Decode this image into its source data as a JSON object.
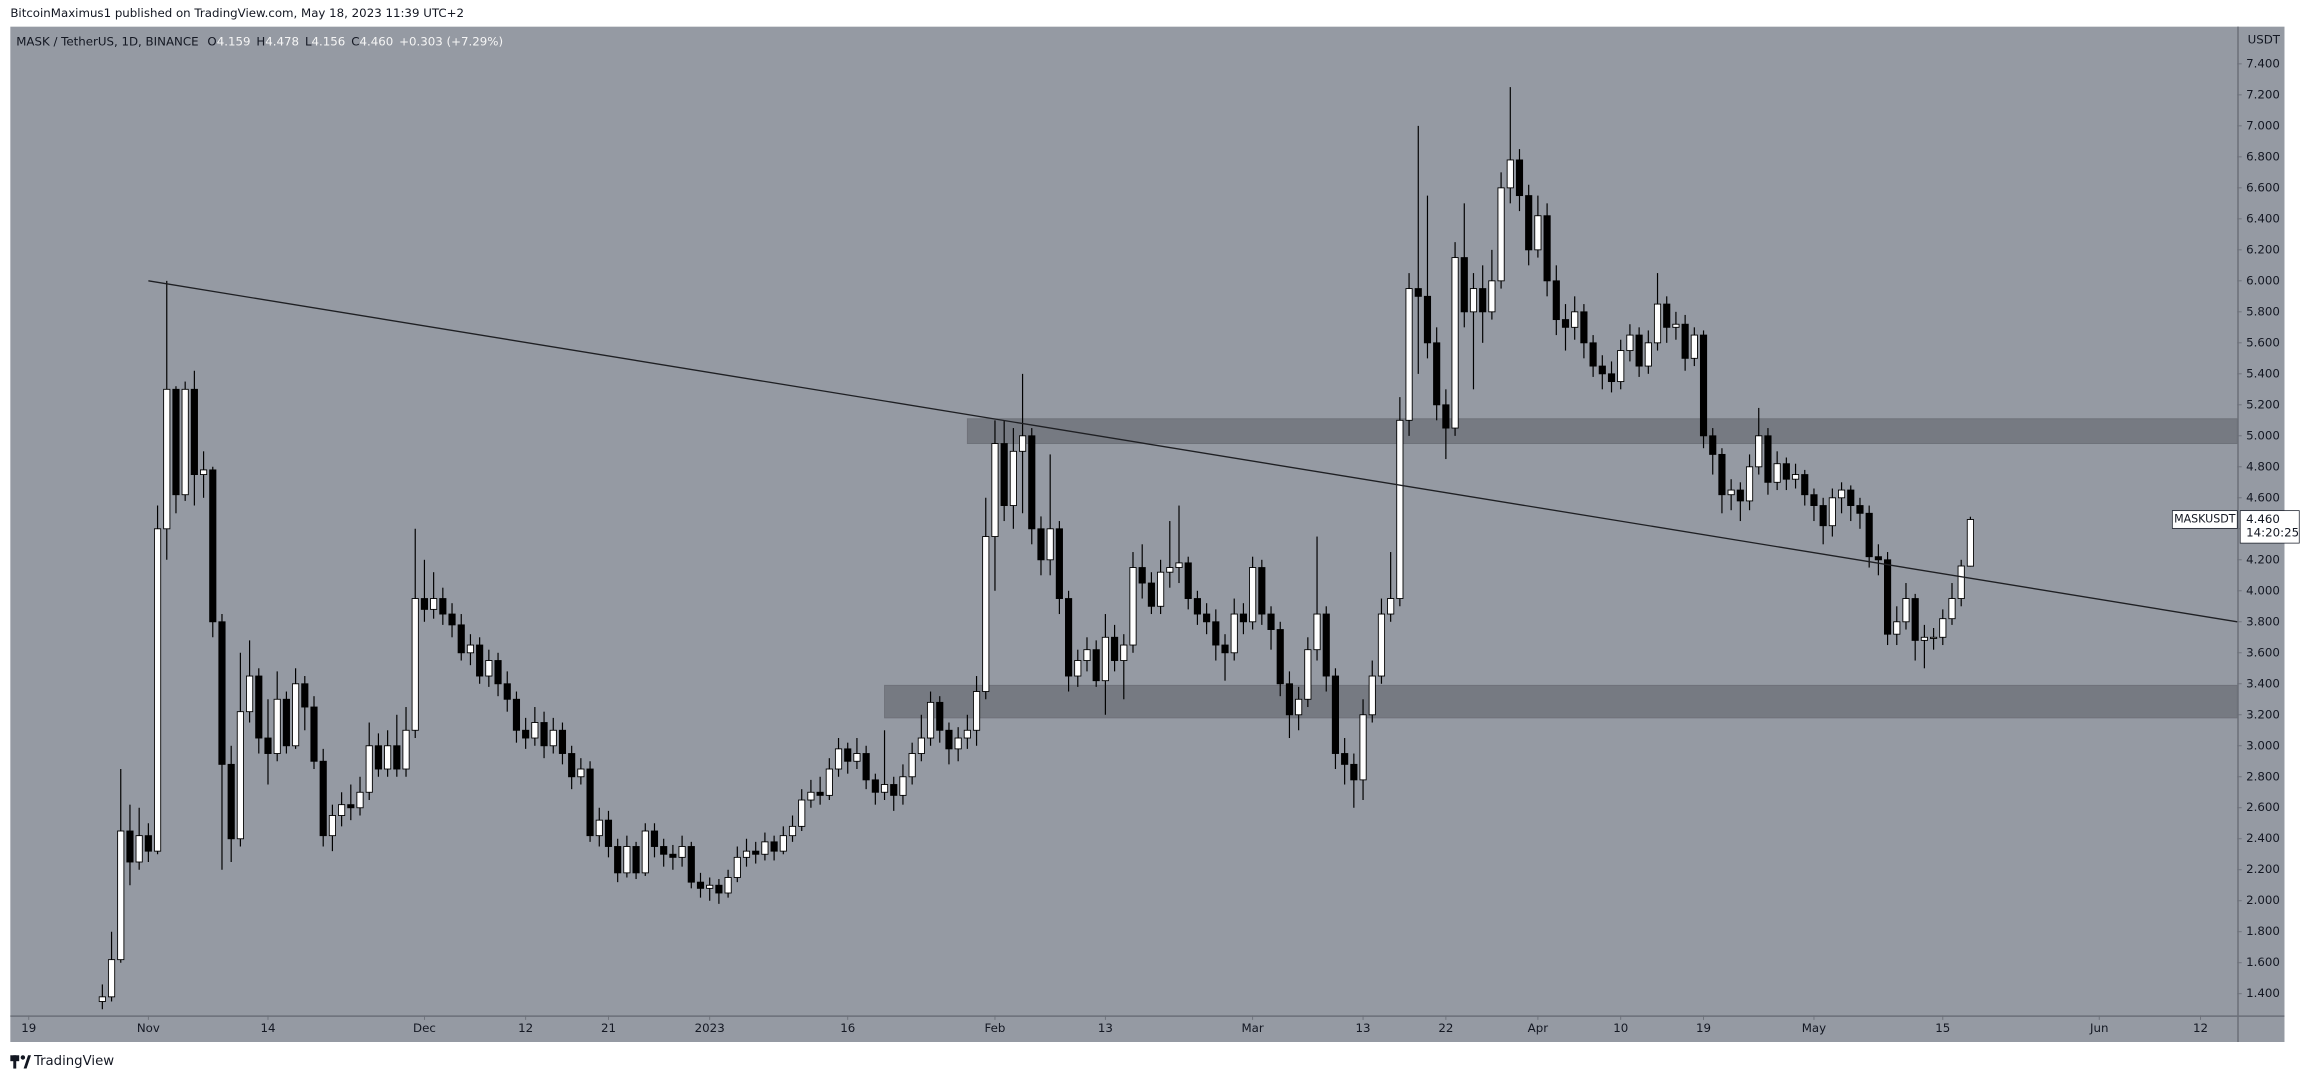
{
  "header": {
    "text": "BitcoinMaximus1 published on TradingView.com, May 18, 2023 11:39 UTC+2"
  },
  "footer": {
    "brand": "TradingView"
  },
  "chart_data": {
    "type": "candlestick",
    "legend": {
      "symbol": "MASK / TetherUS, 1D, BINANCE",
      "fields": [
        {
          "key": "O",
          "text": "4.159"
        },
        {
          "key": "H",
          "text": "4.478"
        },
        {
          "key": "L",
          "text": "4.156"
        },
        {
          "key": "C",
          "text": "4.460"
        }
      ],
      "change": "+0.303 (+7.29%)"
    },
    "y_unit": "USDT",
    "price_tag": {
      "symbol": "MASKUSDT",
      "price": "4.460",
      "countdown": "14:20:25"
    },
    "grid": false,
    "up_color": "#ffffff",
    "down_color": "#000000",
    "wick_color": "#000000",
    "xlim": [
      "2022-10-17",
      "2023-06-16"
    ],
    "ylim": [
      1.26,
      7.64
    ],
    "xticks": [
      {
        "value": "2022-10-19",
        "label": "19"
      },
      {
        "value": "2022-11-01",
        "label": "Nov"
      },
      {
        "value": "2022-11-14",
        "label": "14"
      },
      {
        "value": "2022-12-01",
        "label": "Dec"
      },
      {
        "value": "2022-12-12",
        "label": "12"
      },
      {
        "value": "2022-12-21",
        "label": "21"
      },
      {
        "value": "2023-01-01",
        "label": "2023"
      },
      {
        "value": "2023-01-16",
        "label": "16"
      },
      {
        "value": "2023-02-01",
        "label": "Feb"
      },
      {
        "value": "2023-02-13",
        "label": "13"
      },
      {
        "value": "2023-03-01",
        "label": "Mar"
      },
      {
        "value": "2023-03-13",
        "label": "13"
      },
      {
        "value": "2023-03-22",
        "label": "22"
      },
      {
        "value": "2023-04-01",
        "label": "Apr"
      },
      {
        "value": "2023-04-10",
        "label": "10"
      },
      {
        "value": "2023-04-19",
        "label": "19"
      },
      {
        "value": "2023-05-01",
        "label": "May"
      },
      {
        "value": "2023-05-15",
        "label": "15"
      },
      {
        "value": "2023-06-01",
        "label": "Jun"
      },
      {
        "value": "2023-06-12",
        "label": "12"
      }
    ],
    "yticks": [
      {
        "value": 1.4,
        "label": "1.400"
      },
      {
        "value": 1.6,
        "label": "1.600"
      },
      {
        "value": 1.8,
        "label": "1.800"
      },
      {
        "value": 2.0,
        "label": "2.000"
      },
      {
        "value": 2.2,
        "label": "2.200"
      },
      {
        "value": 2.4,
        "label": "2.400"
      },
      {
        "value": 2.6,
        "label": "2.600"
      },
      {
        "value": 2.8,
        "label": "2.800"
      },
      {
        "value": 3.0,
        "label": "3.000"
      },
      {
        "value": 3.2,
        "label": "3.200"
      },
      {
        "value": 3.4,
        "label": "3.400"
      },
      {
        "value": 3.6,
        "label": "3.600"
      },
      {
        "value": 3.8,
        "label": "3.800"
      },
      {
        "value": 4.0,
        "label": "4.000"
      },
      {
        "value": 4.2,
        "label": "4.200"
      },
      {
        "value": 4.4,
        "label": "4.400"
      },
      {
        "value": 4.6,
        "label": "4.600"
      },
      {
        "value": 4.8,
        "label": "4.800"
      },
      {
        "value": 5.0,
        "label": "5.000"
      },
      {
        "value": 5.2,
        "label": "5.200"
      },
      {
        "value": 5.4,
        "label": "5.400"
      },
      {
        "value": 5.6,
        "label": "5.600"
      },
      {
        "value": 5.8,
        "label": "5.800"
      },
      {
        "value": 6.0,
        "label": "6.000"
      },
      {
        "value": 6.2,
        "label": "6.200"
      },
      {
        "value": 6.4,
        "label": "6.400"
      },
      {
        "value": 6.6,
        "label": "6.600"
      },
      {
        "value": 6.8,
        "label": "6.800"
      },
      {
        "value": 7.0,
        "label": "7.000"
      },
      {
        "value": 7.2,
        "label": "7.200"
      },
      {
        "value": 7.4,
        "label": "7.400"
      }
    ],
    "trendline": {
      "x": [
        "2022-11-01",
        "2023-06-16"
      ],
      "y": [
        6.0,
        3.8
      ]
    },
    "zones": [
      {
        "x": [
          "2023-01-29",
          "2023-06-16"
        ],
        "y": [
          4.95,
          5.11
        ]
      },
      {
        "x": [
          "2023-01-20",
          "2023-06-16"
        ],
        "y": [
          3.18,
          3.39
        ]
      }
    ],
    "x": [
      "2022-10-27",
      "2022-10-28",
      "2022-10-29",
      "2022-10-30",
      "2022-10-31",
      "2022-11-01",
      "2022-11-02",
      "2022-11-03",
      "2022-11-04",
      "2022-11-05",
      "2022-11-06",
      "2022-11-07",
      "2022-11-08",
      "2022-11-09",
      "2022-11-10",
      "2022-11-11",
      "2022-11-12",
      "2022-11-13",
      "2022-11-14",
      "2022-11-15",
      "2022-11-16",
      "2022-11-17",
      "2022-11-18",
      "2022-11-19",
      "2022-11-20",
      "2022-11-21",
      "2022-11-22",
      "2022-11-23",
      "2022-11-24",
      "2022-11-25",
      "2022-11-26",
      "2022-11-27",
      "2022-11-28",
      "2022-11-29",
      "2022-11-30",
      "2022-12-01",
      "2022-12-02",
      "2022-12-03",
      "2022-12-04",
      "2022-12-05",
      "2022-12-06",
      "2022-12-07",
      "2022-12-08",
      "2022-12-09",
      "2022-12-10",
      "2022-12-11",
      "2022-12-12",
      "2022-12-13",
      "2022-12-14",
      "2022-12-15",
      "2022-12-16",
      "2022-12-17",
      "2022-12-18",
      "2022-12-19",
      "2022-12-20",
      "2022-12-21",
      "2022-12-22",
      "2022-12-23",
      "2022-12-24",
      "2022-12-25",
      "2022-12-26",
      "2022-12-27",
      "2022-12-28",
      "2022-12-29",
      "2022-12-30",
      "2022-12-31",
      "2023-01-01",
      "2023-01-02",
      "2023-01-03",
      "2023-01-04",
      "2023-01-05",
      "2023-01-06",
      "2023-01-07",
      "2023-01-08",
      "2023-01-09",
      "2023-01-10",
      "2023-01-11",
      "2023-01-12",
      "2023-01-13",
      "2023-01-14",
      "2023-01-15",
      "2023-01-16",
      "2023-01-17",
      "2023-01-18",
      "2023-01-19",
      "2023-01-20",
      "2023-01-21",
      "2023-01-22",
      "2023-01-23",
      "2023-01-24",
      "2023-01-25",
      "2023-01-26",
      "2023-01-27",
      "2023-01-28",
      "2023-01-29",
      "2023-01-30",
      "2023-01-31",
      "2023-02-01",
      "2023-02-02",
      "2023-02-03",
      "2023-02-04",
      "2023-02-05",
      "2023-02-06",
      "2023-02-07",
      "2023-02-08",
      "2023-02-09",
      "2023-02-10",
      "2023-02-11",
      "2023-02-12",
      "2023-02-13",
      "2023-02-14",
      "2023-02-15",
      "2023-02-16",
      "2023-02-17",
      "2023-02-18",
      "2023-02-19",
      "2023-02-20",
      "2023-02-21",
      "2023-02-22",
      "2023-02-23",
      "2023-02-24",
      "2023-02-25",
      "2023-02-26",
      "2023-02-27",
      "2023-02-28",
      "2023-03-01",
      "2023-03-02",
      "2023-03-03",
      "2023-03-04",
      "2023-03-05",
      "2023-03-06",
      "2023-03-07",
      "2023-03-08",
      "2023-03-09",
      "2023-03-10",
      "2023-03-11",
      "2023-03-12",
      "2023-03-13",
      "2023-03-14",
      "2023-03-15",
      "2023-03-16",
      "2023-03-17",
      "2023-03-18",
      "2023-03-19",
      "2023-03-20",
      "2023-03-21",
      "2023-03-22",
      "2023-03-23",
      "2023-03-24",
      "2023-03-25",
      "2023-03-26",
      "2023-03-27",
      "2023-03-28",
      "2023-03-29",
      "2023-03-30",
      "2023-03-31",
      "2023-04-01",
      "2023-04-02",
      "2023-04-03",
      "2023-04-04",
      "2023-04-05",
      "2023-04-06",
      "2023-04-07",
      "2023-04-08",
      "2023-04-09",
      "2023-04-10",
      "2023-04-11",
      "2023-04-12",
      "2023-04-13",
      "2023-04-14",
      "2023-04-15",
      "2023-04-16",
      "2023-04-17",
      "2023-04-18",
      "2023-04-19",
      "2023-04-20",
      "2023-04-21",
      "2023-04-22",
      "2023-04-23",
      "2023-04-24",
      "2023-04-25",
      "2023-04-26",
      "2023-04-27",
      "2023-04-28",
      "2023-04-29",
      "2023-04-30",
      "2023-05-01",
      "2023-05-02",
      "2023-05-03",
      "2023-05-04",
      "2023-05-05",
      "2023-05-06",
      "2023-05-07",
      "2023-05-08",
      "2023-05-09",
      "2023-05-10",
      "2023-05-11",
      "2023-05-12",
      "2023-05-13",
      "2023-05-14",
      "2023-05-15",
      "2023-05-16",
      "2023-05-17",
      "2023-05-18"
    ],
    "open": [
      1.35,
      1.38,
      1.62,
      2.45,
      2.25,
      2.42,
      2.32,
      4.4,
      5.3,
      4.62,
      5.3,
      4.75,
      4.78,
      3.8,
      2.88,
      2.4,
      3.22,
      3.45,
      3.05,
      2.95,
      3.3,
      3.0,
      3.4,
      3.25,
      2.9,
      2.42,
      2.55,
      2.62,
      2.6,
      2.7,
      3.0,
      2.85,
      3.0,
      2.85,
      3.1,
      3.95,
      3.88,
      3.95,
      3.85,
      3.78,
      3.6,
      3.65,
      3.45,
      3.55,
      3.4,
      3.3,
      3.1,
      3.05,
      3.15,
      3.0,
      3.1,
      2.95,
      2.8,
      2.85,
      2.42,
      2.52,
      2.35,
      2.18,
      2.35,
      2.18,
      2.45,
      2.35,
      2.3,
      2.28,
      2.35,
      2.12,
      2.08,
      2.1,
      2.05,
      2.15,
      2.28,
      2.32,
      2.3,
      2.38,
      2.32,
      2.42,
      2.48,
      2.65,
      2.7,
      2.68,
      2.85,
      2.98,
      2.9,
      2.95,
      2.78,
      2.7,
      2.75,
      2.68,
      2.8,
      2.95,
      3.05,
      3.28,
      3.1,
      2.98,
      3.05,
      3.1,
      3.35,
      4.35,
      4.95,
      4.55,
      4.9,
      5.0,
      4.4,
      4.2,
      4.4,
      3.95,
      3.45,
      3.55,
      3.62,
      3.42,
      3.7,
      3.55,
      3.65,
      4.15,
      4.05,
      3.9,
      4.12,
      4.15,
      4.18,
      3.95,
      3.85,
      3.8,
      3.65,
      3.6,
      3.85,
      3.8,
      4.15,
      3.85,
      3.75,
      3.4,
      3.2,
      3.3,
      3.62,
      3.85,
      3.45,
      2.95,
      2.88,
      2.78,
      3.2,
      3.45,
      3.85,
      3.95,
      5.1,
      5.95,
      5.9,
      5.6,
      5.2,
      5.05,
      6.15,
      5.8,
      5.95,
      5.8,
      6.0,
      6.6,
      6.78,
      6.55,
      6.2,
      6.42,
      6.0,
      5.75,
      5.7,
      5.8,
      5.6,
      5.45,
      5.4,
      5.35,
      5.55,
      5.65,
      5.45,
      5.6,
      5.85,
      5.7,
      5.72,
      5.5,
      5.65,
      5.0,
      4.88,
      4.62,
      4.65,
      4.58,
      4.8,
      5.0,
      4.7,
      4.82,
      4.72,
      4.75,
      4.62,
      4.55,
      4.42,
      4.6,
      4.65,
      4.55,
      4.5,
      4.22,
      4.2,
      3.72,
      3.8,
      3.95,
      3.68,
      3.7,
      3.7,
      3.82,
      3.95,
      4.159
    ],
    "high": [
      1.46,
      1.8,
      2.85,
      2.62,
      2.6,
      2.5,
      4.55,
      6.0,
      5.32,
      5.35,
      5.42,
      4.9,
      4.8,
      3.85,
      3.0,
      3.6,
      3.68,
      3.5,
      3.3,
      3.48,
      3.35,
      3.5,
      3.45,
      3.32,
      2.98,
      2.62,
      2.7,
      2.75,
      2.8,
      3.15,
      3.08,
      3.1,
      3.2,
      3.25,
      4.4,
      4.2,
      4.12,
      4.02,
      3.92,
      3.85,
      3.72,
      3.7,
      3.62,
      3.6,
      3.48,
      3.35,
      3.18,
      3.25,
      3.22,
      3.18,
      3.15,
      3.0,
      2.92,
      2.9,
      2.6,
      2.58,
      2.4,
      2.42,
      2.38,
      2.5,
      2.5,
      2.4,
      2.36,
      2.42,
      2.38,
      2.18,
      2.15,
      2.14,
      2.2,
      2.35,
      2.4,
      2.38,
      2.44,
      2.42,
      2.48,
      2.55,
      2.72,
      2.78,
      2.8,
      2.92,
      3.05,
      3.02,
      3.05,
      3.0,
      2.82,
      3.1,
      2.8,
      2.88,
      3.02,
      3.2,
      3.35,
      3.32,
      3.15,
      3.12,
      3.2,
      3.45,
      4.6,
      5.1,
      5.1,
      5.05,
      5.4,
      5.05,
      4.48,
      4.88,
      4.45,
      4.0,
      3.62,
      3.7,
      3.68,
      3.85,
      3.78,
      3.72,
      4.25,
      4.3,
      4.12,
      4.2,
      4.45,
      4.55,
      4.22,
      4.0,
      3.92,
      3.88,
      3.72,
      3.95,
      3.92,
      4.22,
      4.2,
      3.9,
      3.8,
      3.48,
      3.38,
      3.7,
      4.35,
      3.9,
      3.5,
      3.05,
      2.95,
      3.3,
      3.55,
      3.95,
      4.25,
      5.25,
      6.05,
      7.0,
      6.55,
      5.7,
      5.3,
      6.25,
      6.5,
      6.05,
      6.1,
      6.2,
      6.7,
      7.25,
      6.85,
      6.62,
      6.55,
      6.5,
      6.1,
      5.85,
      5.9,
      5.85,
      5.65,
      5.52,
      5.48,
      5.62,
      5.72,
      5.7,
      5.68,
      6.05,
      5.9,
      5.8,
      5.78,
      5.7,
      5.68,
      5.05,
      4.92,
      4.72,
      4.7,
      4.88,
      5.18,
      5.05,
      4.9,
      4.86,
      4.82,
      4.78,
      4.66,
      4.6,
      4.66,
      4.7,
      4.68,
      4.6,
      4.55,
      4.3,
      4.25,
      3.9,
      4.05,
      3.98,
      3.78,
      3.76,
      3.88,
      4.05,
      4.2,
      4.478
    ],
    "low": [
      1.3,
      1.35,
      1.6,
      2.1,
      2.2,
      2.25,
      2.3,
      4.2,
      4.5,
      4.58,
      4.55,
      4.6,
      3.7,
      2.2,
      2.25,
      2.35,
      3.15,
      2.95,
      2.75,
      2.9,
      2.95,
      2.98,
      3.1,
      2.85,
      2.35,
      2.32,
      2.48,
      2.52,
      2.55,
      2.65,
      2.8,
      2.8,
      2.8,
      2.8,
      3.05,
      3.8,
      3.82,
      3.78,
      3.7,
      3.55,
      3.52,
      3.4,
      3.38,
      3.32,
      3.22,
      3.02,
      2.98,
      3.0,
      2.92,
      2.95,
      2.88,
      2.72,
      2.75,
      2.38,
      2.35,
      2.28,
      2.12,
      2.15,
      2.14,
      2.16,
      2.28,
      2.22,
      2.2,
      2.22,
      2.08,
      2.02,
      2.0,
      1.98,
      2.02,
      2.12,
      2.22,
      2.24,
      2.26,
      2.26,
      2.3,
      2.38,
      2.45,
      2.6,
      2.62,
      2.65,
      2.8,
      2.82,
      2.85,
      2.72,
      2.62,
      2.65,
      2.58,
      2.62,
      2.75,
      2.9,
      3.0,
      3.02,
      2.88,
      2.9,
      2.98,
      3.0,
      3.3,
      4.0,
      4.45,
      4.4,
      4.5,
      4.3,
      4.1,
      4.1,
      3.85,
      3.35,
      3.38,
      3.48,
      3.38,
      3.2,
      3.48,
      3.3,
      3.6,
      3.95,
      3.85,
      3.85,
      4.02,
      4.05,
      3.88,
      3.78,
      3.72,
      3.55,
      3.42,
      3.55,
      3.72,
      3.75,
      3.78,
      3.62,
      3.32,
      3.05,
      3.1,
      3.25,
      3.55,
      3.35,
      2.85,
      2.75,
      2.6,
      2.65,
      3.15,
      3.4,
      3.8,
      3.9,
      5.0,
      5.4,
      5.5,
      5.1,
      4.85,
      5.0,
      5.7,
      5.3,
      5.6,
      5.75,
      5.95,
      6.5,
      6.45,
      6.1,
      6.15,
      5.9,
      5.65,
      5.55,
      5.62,
      5.5,
      5.38,
      5.3,
      5.28,
      5.3,
      5.48,
      5.38,
      5.4,
      5.55,
      5.6,
      5.62,
      5.42,
      5.45,
      4.92,
      4.75,
      4.5,
      4.52,
      4.45,
      4.52,
      4.75,
      4.62,
      4.65,
      4.65,
      4.66,
      4.55,
      4.45,
      4.3,
      4.35,
      4.5,
      4.45,
      4.4,
      4.15,
      4.1,
      3.65,
      3.65,
      3.75,
      3.55,
      3.5,
      3.62,
      3.65,
      3.78,
      3.9,
      4.156
    ],
    "close": [
      1.38,
      1.62,
      2.45,
      2.25,
      2.42,
      2.32,
      4.4,
      5.3,
      4.62,
      5.3,
      4.75,
      4.78,
      3.8,
      2.88,
      2.4,
      3.22,
      3.45,
      3.05,
      2.95,
      3.3,
      3.0,
      3.4,
      3.25,
      2.9,
      2.42,
      2.55,
      2.62,
      2.6,
      2.7,
      3.0,
      2.85,
      3.0,
      2.85,
      3.1,
      3.95,
      3.88,
      3.95,
      3.85,
      3.78,
      3.6,
      3.65,
      3.45,
      3.55,
      3.4,
      3.3,
      3.1,
      3.05,
      3.15,
      3.0,
      3.1,
      2.95,
      2.8,
      2.85,
      2.42,
      2.52,
      2.35,
      2.18,
      2.35,
      2.18,
      2.45,
      2.35,
      2.3,
      2.28,
      2.35,
      2.12,
      2.08,
      2.1,
      2.05,
      2.15,
      2.28,
      2.32,
      2.3,
      2.38,
      2.32,
      2.42,
      2.48,
      2.65,
      2.7,
      2.68,
      2.85,
      2.98,
      2.9,
      2.95,
      2.78,
      2.7,
      2.75,
      2.68,
      2.8,
      2.95,
      3.05,
      3.28,
      3.1,
      2.98,
      3.05,
      3.1,
      3.35,
      4.35,
      4.95,
      4.55,
      4.9,
      5.0,
      4.4,
      4.2,
      4.4,
      3.95,
      3.45,
      3.55,
      3.62,
      3.42,
      3.7,
      3.55,
      3.65,
      4.15,
      4.05,
      3.9,
      4.12,
      4.15,
      4.18,
      3.95,
      3.85,
      3.8,
      3.65,
      3.6,
      3.85,
      3.8,
      4.15,
      3.85,
      3.75,
      3.4,
      3.2,
      3.3,
      3.62,
      3.85,
      3.45,
      2.95,
      2.88,
      2.78,
      3.2,
      3.45,
      3.85,
      3.95,
      5.1,
      5.95,
      5.9,
      5.6,
      5.2,
      5.05,
      6.15,
      5.8,
      5.95,
      5.8,
      6.0,
      6.6,
      6.78,
      6.55,
      6.2,
      6.42,
      6.0,
      5.75,
      5.7,
      5.8,
      5.6,
      5.45,
      5.4,
      5.35,
      5.55,
      5.65,
      5.45,
      5.6,
      5.85,
      5.7,
      5.72,
      5.5,
      5.65,
      5.0,
      4.88,
      4.62,
      4.65,
      4.58,
      4.8,
      5.0,
      4.7,
      4.82,
      4.72,
      4.75,
      4.62,
      4.55,
      4.42,
      4.6,
      4.65,
      4.55,
      4.5,
      4.22,
      4.2,
      3.72,
      3.8,
      3.95,
      3.68,
      3.7,
      3.7,
      3.82,
      3.95,
      4.16,
      4.46
    ]
  }
}
